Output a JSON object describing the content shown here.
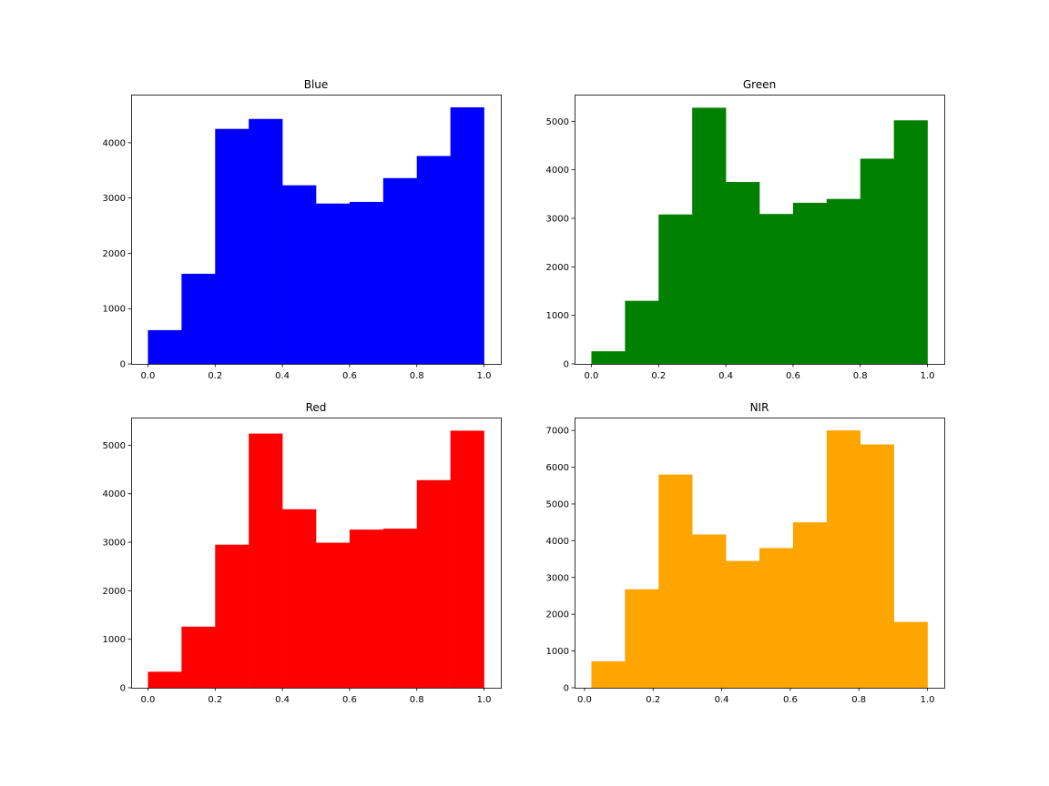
{
  "chart_data": [
    {
      "type": "bar",
      "title": "Blue",
      "color": "#0000ff",
      "bin_edges": [
        0.0,
        0.1,
        0.2,
        0.3,
        0.4,
        0.5,
        0.6,
        0.7,
        0.8,
        0.9,
        1.0
      ],
      "values": [
        610,
        1630,
        4250,
        4430,
        3230,
        2900,
        2930,
        3360,
        3760,
        4640
      ],
      "xlim": [
        -0.05,
        1.05
      ],
      "ylim": [
        0,
        4870
      ],
      "xticks": [
        0.0,
        0.2,
        0.4,
        0.6,
        0.8,
        1.0
      ],
      "xtick_labels": [
        "0.0",
        "0.2",
        "0.4",
        "0.6",
        "0.8",
        "1.0"
      ],
      "yticks": [
        0,
        1000,
        2000,
        3000,
        4000
      ],
      "ytick_labels": [
        "0",
        "1000",
        "2000",
        "3000",
        "4000"
      ]
    },
    {
      "type": "bar",
      "title": "Green",
      "color": "#008000",
      "bin_edges": [
        0.0,
        0.1,
        0.2,
        0.3,
        0.4,
        0.5,
        0.6,
        0.7,
        0.8,
        0.9,
        1.0
      ],
      "values": [
        260,
        1300,
        3080,
        5280,
        3750,
        3090,
        3320,
        3400,
        4230,
        5020
      ],
      "xlim": [
        -0.05,
        1.05
      ],
      "ylim": [
        0,
        5550
      ],
      "xticks": [
        0.0,
        0.2,
        0.4,
        0.6,
        0.8,
        1.0
      ],
      "xtick_labels": [
        "0.0",
        "0.2",
        "0.4",
        "0.6",
        "0.8",
        "1.0"
      ],
      "yticks": [
        0,
        1000,
        2000,
        3000,
        4000,
        5000
      ],
      "ytick_labels": [
        "0",
        "1000",
        "2000",
        "3000",
        "4000",
        "5000"
      ]
    },
    {
      "type": "bar",
      "title": "Red",
      "color": "#ff0000",
      "bin_edges": [
        0.0,
        0.1,
        0.2,
        0.3,
        0.4,
        0.5,
        0.6,
        0.7,
        0.8,
        0.9,
        1.0
      ],
      "values": [
        330,
        1260,
        2950,
        5240,
        3680,
        2990,
        3260,
        3280,
        4280,
        5300
      ],
      "xlim": [
        -0.05,
        1.05
      ],
      "ylim": [
        0,
        5570
      ],
      "xticks": [
        0.0,
        0.2,
        0.4,
        0.6,
        0.8,
        1.0
      ],
      "xtick_labels": [
        "0.0",
        "0.2",
        "0.4",
        "0.6",
        "0.8",
        "1.0"
      ],
      "yticks": [
        0,
        1000,
        2000,
        3000,
        4000,
        5000
      ],
      "ytick_labels": [
        "0",
        "1000",
        "2000",
        "3000",
        "4000",
        "5000"
      ]
    },
    {
      "type": "bar",
      "title": "NIR",
      "color": "#ffa500",
      "bin_edges": [
        0.02,
        0.118,
        0.216,
        0.314,
        0.412,
        0.51,
        0.608,
        0.706,
        0.804,
        0.902,
        1.0
      ],
      "values": [
        720,
        2680,
        5800,
        4170,
        3450,
        3800,
        4500,
        7000,
        6620,
        1790
      ],
      "xlim": [
        -0.029,
        1.049
      ],
      "ylim": [
        0,
        7350
      ],
      "xticks": [
        0.0,
        0.2,
        0.4,
        0.6,
        0.8,
        1.0
      ],
      "xtick_labels": [
        "0.0",
        "0.2",
        "0.4",
        "0.6",
        "0.8",
        "1.0"
      ],
      "yticks": [
        0,
        1000,
        2000,
        3000,
        4000,
        5000,
        6000,
        7000
      ],
      "ytick_labels": [
        "0",
        "1000",
        "2000",
        "3000",
        "4000",
        "5000",
        "6000",
        "7000"
      ]
    }
  ]
}
